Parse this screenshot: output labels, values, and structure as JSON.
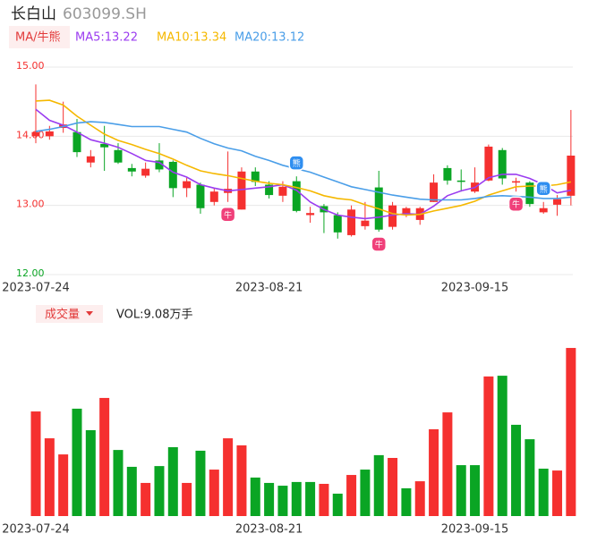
{
  "chart_data": [
    {
      "type": "candlestick",
      "title": "长白山",
      "subtitle": "603099.SH",
      "legend_title": "MA/牛熊",
      "categories": [
        "2023-07-24",
        null,
        null,
        null,
        null,
        null,
        null,
        null,
        null,
        null,
        null,
        null,
        null,
        null,
        null,
        null,
        null,
        "2023-08-21",
        null,
        null,
        null,
        null,
        null,
        null,
        null,
        null,
        null,
        null,
        null,
        null,
        null,
        null,
        "2023-09-15",
        null,
        null,
        null,
        null,
        null,
        null,
        null
      ],
      "open": [
        14.0,
        14.0,
        14.12,
        14.06,
        13.62,
        13.89,
        13.8,
        13.54,
        13.43,
        13.65,
        13.63,
        13.25,
        13.3,
        13.05,
        13.18,
        12.94,
        13.49,
        13.3,
        13.14,
        13.35,
        12.86,
        12.99,
        12.86,
        12.57,
        12.7,
        13.26,
        12.69,
        12.88,
        12.79,
        13.05,
        13.54,
        13.36,
        13.2,
        13.36,
        13.8,
        13.33,
        13.33,
        12.9,
        13.01,
        13.14
      ],
      "high": [
        14.75,
        14.15,
        14.5,
        14.25,
        13.8,
        14.15,
        13.9,
        13.6,
        13.62,
        13.9,
        13.65,
        13.4,
        13.33,
        13.25,
        13.78,
        13.55,
        13.55,
        13.35,
        13.35,
        13.42,
        12.98,
        13.02,
        12.9,
        13.0,
        13.05,
        13.5,
        13.05,
        12.98,
        12.98,
        13.45,
        13.58,
        13.52,
        13.55,
        13.88,
        13.83,
        13.4,
        13.35,
        13.05,
        13.15,
        14.38
      ],
      "low": [
        13.9,
        13.95,
        14.05,
        13.7,
        13.55,
        13.5,
        13.6,
        13.42,
        13.4,
        13.48,
        13.12,
        13.12,
        12.88,
        13.0,
        13.05,
        12.94,
        13.28,
        13.1,
        13.05,
        12.9,
        12.75,
        12.6,
        12.52,
        12.55,
        12.65,
        12.62,
        12.65,
        12.83,
        12.72,
        13.05,
        13.3,
        13.2,
        13.18,
        13.35,
        13.3,
        13.2,
        12.98,
        12.88,
        12.85,
        13.0
      ],
      "close": [
        14.06,
        14.07,
        14.17,
        13.77,
        13.71,
        13.84,
        13.62,
        13.49,
        13.53,
        13.52,
        13.25,
        13.35,
        12.96,
        13.2,
        13.24,
        13.49,
        13.34,
        13.15,
        13.27,
        12.92,
        12.89,
        12.9,
        12.61,
        12.94,
        12.78,
        12.65,
        13.0,
        12.96,
        12.96,
        13.33,
        13.36,
        13.34,
        13.33,
        13.85,
        13.39,
        13.35,
        13.02,
        12.96,
        13.09,
        13.72
      ],
      "up_color": "#f5302f",
      "down_color": "#0aa524",
      "series": [
        {
          "name": "MA5:13.22",
          "color": "#9b3cf0",
          "values": [
            14.39,
            14.23,
            14.16,
            14.06,
            13.95,
            13.9,
            13.84,
            13.75,
            13.65,
            13.62,
            13.48,
            13.41,
            13.3,
            13.25,
            13.21,
            13.23,
            13.25,
            13.27,
            13.3,
            13.22,
            13.05,
            12.94,
            12.86,
            12.83,
            12.81,
            12.83,
            12.86,
            12.88,
            12.87,
            12.99,
            13.14,
            13.21,
            13.26,
            13.4,
            13.45,
            13.45,
            13.39,
            13.3,
            13.18,
            13.22
          ]
        },
        {
          "name": "MA10:13.34",
          "color": "#f5b800",
          "values": [
            14.51,
            14.52,
            14.45,
            14.29,
            14.16,
            14.03,
            13.94,
            13.88,
            13.81,
            13.75,
            13.67,
            13.58,
            13.5,
            13.46,
            13.43,
            13.39,
            13.35,
            13.32,
            13.3,
            13.26,
            13.21,
            13.14,
            13.1,
            13.08,
            13.01,
            12.95,
            12.88,
            12.86,
            12.87,
            12.92,
            12.96,
            13.0,
            13.06,
            13.15,
            13.21,
            13.27,
            13.28,
            13.28,
            13.3,
            13.34
          ]
        },
        {
          "name": "MA20:13.12",
          "color": "#4a9ee8",
          "values": [
            14.07,
            14.1,
            14.14,
            14.19,
            14.21,
            14.2,
            14.17,
            14.14,
            14.14,
            14.14,
            14.1,
            14.06,
            13.97,
            13.89,
            13.83,
            13.79,
            13.71,
            13.65,
            13.58,
            13.53,
            13.48,
            13.41,
            13.34,
            13.27,
            13.23,
            13.19,
            13.15,
            13.12,
            13.09,
            13.08,
            13.08,
            13.08,
            13.1,
            13.13,
            13.14,
            13.13,
            13.12,
            13.1,
            13.1,
            13.12
          ]
        }
      ],
      "ylim": [
        12,
        15
      ],
      "yticks": [
        {
          "value": 12,
          "label": "12.00"
        },
        {
          "value": 13,
          "label": "13.00"
        },
        {
          "value": 14,
          "label": "14.00"
        },
        {
          "value": 15,
          "label": "15.00"
        }
      ],
      "ytick_colors": [
        "#0aa524",
        "#f5302f",
        "#f5302f",
        "#f5302f"
      ],
      "grid": true,
      "bull_label": "牛",
      "bear_label": "熊"
    },
    {
      "type": "bar",
      "title": "成交量",
      "label": "VOL:9.08万手",
      "categories": [
        "2023-07-24",
        null,
        null,
        null,
        null,
        null,
        null,
        null,
        null,
        null,
        null,
        null,
        null,
        null,
        null,
        null,
        null,
        "2023-08-21",
        null,
        null,
        null,
        null,
        null,
        null,
        null,
        null,
        null,
        null,
        null,
        null,
        null,
        null,
        "2023-09-15",
        null,
        null,
        null,
        null,
        null,
        null,
        null
      ],
      "values": [
        5.65,
        4.2,
        3.33,
        5.8,
        4.64,
        6.38,
        3.57,
        2.66,
        1.79,
        2.7,
        3.72,
        1.79,
        3.53,
        2.51,
        4.2,
        3.82,
        2.08,
        1.79,
        1.64,
        1.84,
        1.84,
        1.74,
        1.21,
        2.22,
        2.51,
        3.29,
        3.14,
        1.5,
        1.88,
        4.69,
        5.6,
        2.75,
        2.75,
        7.54,
        7.58,
        4.93,
        4.15,
        2.56,
        2.46,
        9.08
      ],
      "colors": [
        "#f5302f",
        "#f5302f",
        "#f5302f",
        "#0aa524",
        "#0aa524",
        "#f5302f",
        "#0aa524",
        "#0aa524",
        "#f5302f",
        "#0aa524",
        "#0aa524",
        "#f5302f",
        "#0aa524",
        "#f5302f",
        "#f5302f",
        "#f5302f",
        "#0aa524",
        "#0aa524",
        "#0aa524",
        "#0aa524",
        "#0aa524",
        "#f5302f",
        "#0aa524",
        "#f5302f",
        "#0aa524",
        "#0aa524",
        "#f5302f",
        "#0aa524",
        "#f5302f",
        "#f5302f",
        "#f5302f",
        "#0aa524",
        "#0aa524",
        "#f5302f",
        "#0aa524",
        "#0aa524",
        "#0aa524",
        "#0aa524",
        "#f5302f",
        "#f5302f"
      ],
      "ylim": [
        0,
        10
      ]
    }
  ]
}
